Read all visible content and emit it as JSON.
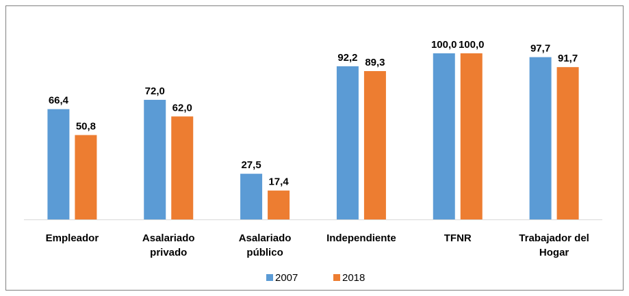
{
  "chart_data": {
    "type": "bar",
    "categories": [
      "Empleador",
      "Asalariado privado",
      "Asalariado público",
      "Independiente",
      "TFNR",
      "Trabajador del Hogar"
    ],
    "series": [
      {
        "name": "2007",
        "color": "#5b9bd5",
        "values": [
          66.4,
          72.0,
          27.5,
          92.2,
          100.0,
          97.7
        ],
        "value_labels": [
          "66,4",
          "72,0",
          "27,5",
          "92,2",
          "100,0",
          "97,7"
        ]
      },
      {
        "name": "2018",
        "color": "#ed7d31",
        "values": [
          50.8,
          62.0,
          17.4,
          89.3,
          100.0,
          91.7
        ],
        "value_labels": [
          "50,8",
          "62,0",
          "17,4",
          "89,3",
          "100,0",
          "91,7"
        ]
      }
    ]
  }
}
